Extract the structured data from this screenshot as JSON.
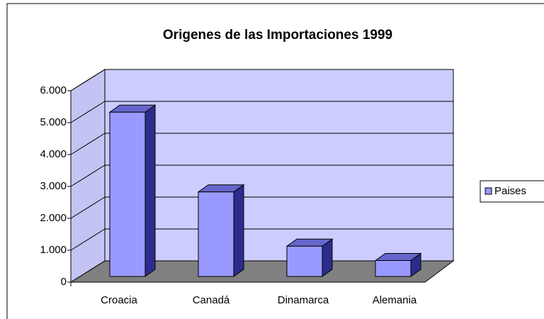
{
  "chart_data": {
    "type": "bar3d",
    "title": "Origenes de las Importaciones 1999",
    "categories": [
      "Croacia",
      "Canadá",
      "Dinamarca",
      "Alemania"
    ],
    "series": [
      {
        "name": "Paises",
        "color": "#9999ff",
        "values": [
          5150,
          2650,
          950,
          500
        ]
      }
    ],
    "ylim": [
      0,
      6000
    ],
    "yticks": [
      0,
      {
        "value": 1000,
        "label": "1.000"
      },
      {
        "value": 2000,
        "label": "2.000"
      },
      {
        "value": 3000,
        "label": "3.000"
      },
      {
        "value": 4000,
        "label": "4.000"
      },
      {
        "value": 5000,
        "label": "5.000"
      },
      {
        "value": 6000,
        "label": "6.000"
      }
    ],
    "grid": true,
    "legend": "right"
  }
}
